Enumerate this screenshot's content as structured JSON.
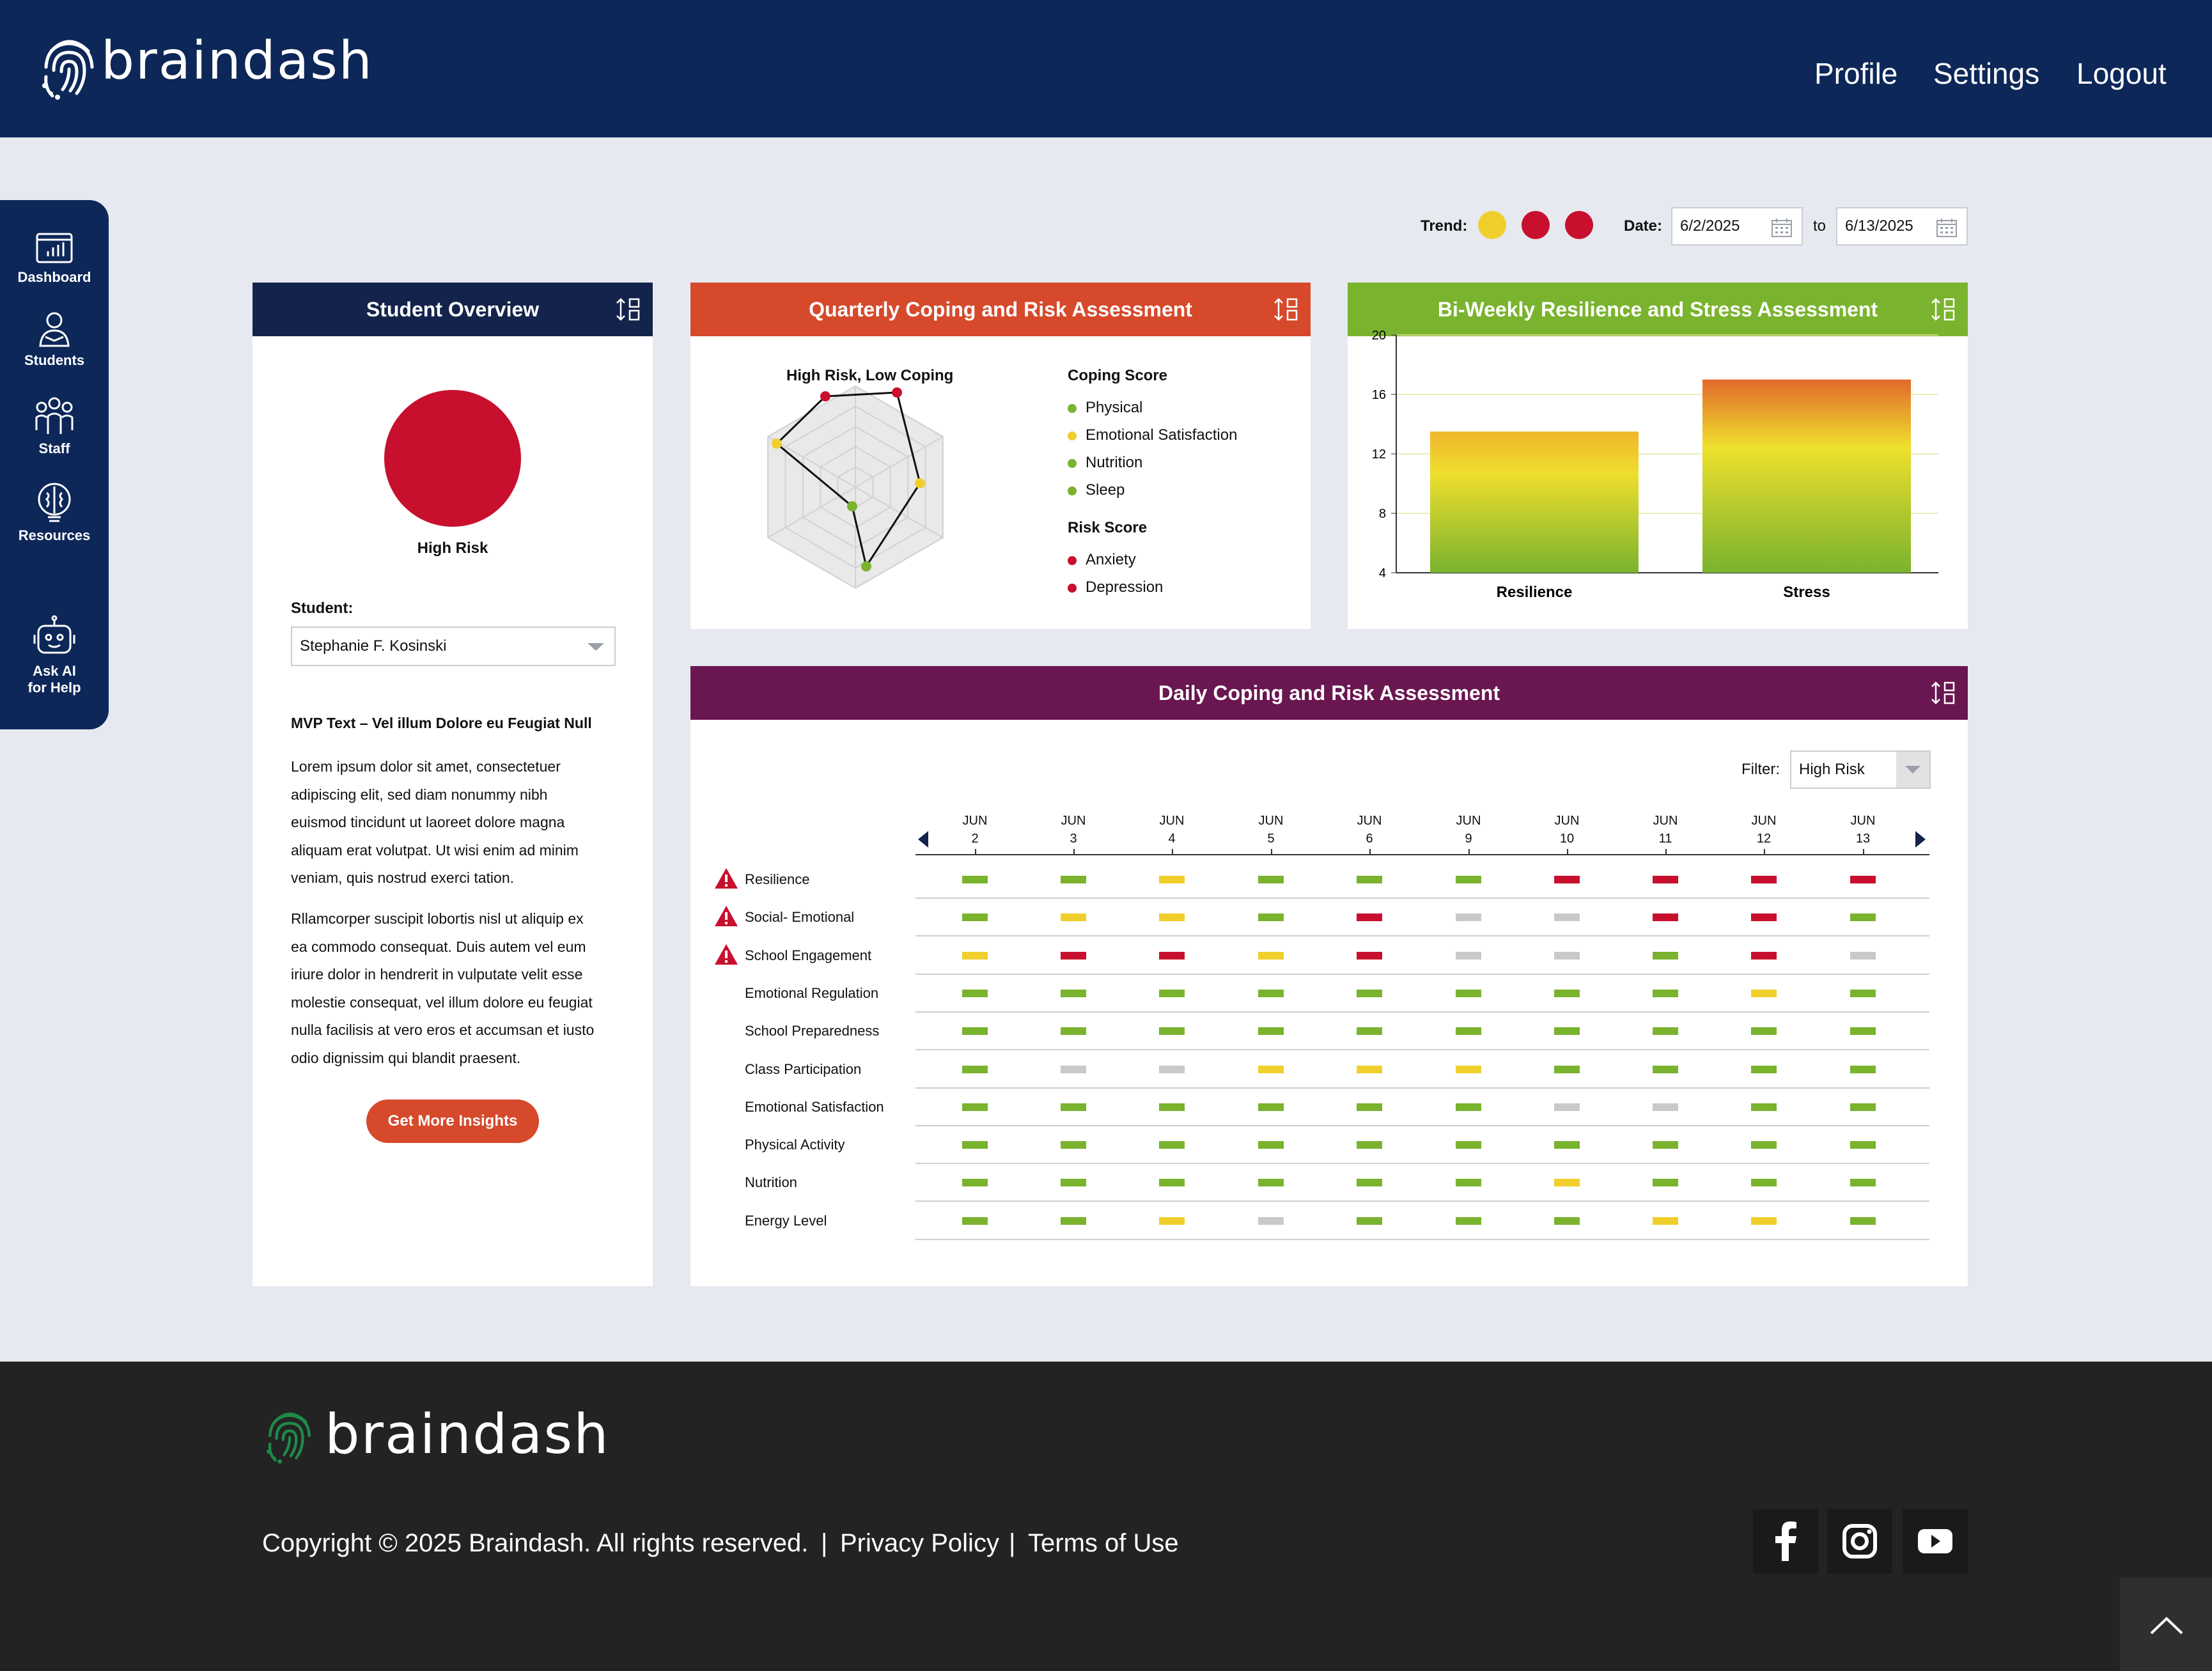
{
  "header": {
    "brand": "braindash",
    "nav": [
      "Profile",
      "Settings",
      "Logout"
    ]
  },
  "sidebar": {
    "items": [
      {
        "label": "Dashboard",
        "icon": "dashboard-icon"
      },
      {
        "label": "Students",
        "icon": "students-icon"
      },
      {
        "label": "Staff",
        "icon": "staff-icon"
      },
      {
        "label": "Resources",
        "icon": "brain-icon"
      },
      {
        "label_line1": "Ask AI",
        "label_line2": "for Help",
        "icon": "robot-icon"
      }
    ]
  },
  "filters": {
    "trend_label": "Trend:",
    "trend_colors": [
      "#f0cf2d",
      "#c8102e",
      "#c8102e"
    ],
    "date_label": "Date:",
    "date_from": "6/2/2025",
    "to_label": "to",
    "date_to": "6/13/2025"
  },
  "overview": {
    "title": "Student Overview",
    "status_color": "#c8102e",
    "status": "High Risk",
    "student_label": "Student:",
    "student": "Stephanie F. Kosinski",
    "text_title": "MVP Text – Vel illum Dolore eu Feugiat Null",
    "para1": [
      "Lorem ipsum dolor sit amet, consectetuer",
      "adipiscing elit, sed diam nonummy nibh",
      "euismod tincidunt ut laoreet dolore magna",
      "aliquam erat volutpat. Ut wisi enim ad minim",
      "veniam, quis nostrud exerci tation."
    ],
    "para2": [
      "Rllamcorper suscipit lobortis nisl ut aliquip ex",
      "ea commodo consequat. Duis autem vel eum",
      "iriure dolor in hendrerit in vulputate velit esse",
      "molestie consequat, vel illum dolore eu feugiat",
      "nulla facilisis at vero eros et accumsan et iusto",
      "odio dignissim qui blandit praesent."
    ],
    "button": "Get More Insights"
  },
  "quarterly": {
    "title": "Quarterly Coping and Risk Assessment",
    "chart_title": "High Risk, Low Coping",
    "coping_heading": "Coping Score",
    "coping": [
      {
        "name": "Physical",
        "color": "#7ab32e"
      },
      {
        "name": "Emotional Satisfaction",
        "color": "#f0cf2d"
      },
      {
        "name": "Nutrition",
        "color": "#7ab32e"
      },
      {
        "name": "Sleep",
        "color": "#7ab32e"
      }
    ],
    "risk_heading": "Risk Score",
    "risk": [
      {
        "name": "Anxiety",
        "color": "#c8102e"
      },
      {
        "name": "Depression",
        "color": "#c8102e"
      }
    ]
  },
  "biweekly": {
    "title": "Bi-Weekly Resilience and Stress Assessment"
  },
  "chart_data": {
    "type": "bar",
    "categories": [
      "Resilience",
      "Stress"
    ],
    "values": [
      13.5,
      17
    ],
    "ylim": [
      4,
      20
    ],
    "yticks": [
      20,
      16,
      12,
      8,
      4
    ],
    "grid": true
  },
  "daily": {
    "title": "Daily Coping and Risk Assessment",
    "filter_label": "Filter:",
    "filter_value": "High Risk",
    "month": "JUN",
    "days": [
      "2",
      "3",
      "4",
      "5",
      "6",
      "9",
      "10",
      "11",
      "12",
      "13"
    ],
    "palette": {
      "g": "#7ab32e",
      "y": "#f0cf2d",
      "r": "#c8102e",
      "x": "#c9c9c9"
    },
    "rows": [
      {
        "label": "Resilience",
        "alert": true,
        "values": [
          "g",
          "g",
          "y",
          "g",
          "g",
          "g",
          "r",
          "r",
          "r",
          "r"
        ]
      },
      {
        "label": "Social- Emotional",
        "alert": true,
        "values": [
          "g",
          "y",
          "y",
          "g",
          "r",
          "x",
          "x",
          "r",
          "r",
          "g"
        ]
      },
      {
        "label": "School Engagement",
        "alert": true,
        "values": [
          "y",
          "r",
          "r",
          "y",
          "r",
          "x",
          "x",
          "g",
          "r",
          "x"
        ]
      },
      {
        "label": "Emotional Regulation",
        "alert": false,
        "values": [
          "g",
          "g",
          "g",
          "g",
          "g",
          "g",
          "g",
          "g",
          "y",
          "g"
        ]
      },
      {
        "label": "School Preparedness",
        "alert": false,
        "values": [
          "g",
          "g",
          "g",
          "g",
          "g",
          "g",
          "g",
          "g",
          "g",
          "g"
        ]
      },
      {
        "label": "Class Participation",
        "alert": false,
        "values": [
          "g",
          "x",
          "x",
          "y",
          "y",
          "y",
          "g",
          "g",
          "g",
          "g"
        ]
      },
      {
        "label": "Emotional Satisfaction",
        "alert": false,
        "values": [
          "g",
          "g",
          "g",
          "g",
          "g",
          "g",
          "x",
          "x",
          "g",
          "g"
        ]
      },
      {
        "label": "Physical Activity",
        "alert": false,
        "values": [
          "g",
          "g",
          "g",
          "g",
          "g",
          "g",
          "g",
          "g",
          "g",
          "g"
        ]
      },
      {
        "label": "Nutrition",
        "alert": false,
        "values": [
          "g",
          "g",
          "g",
          "g",
          "g",
          "g",
          "y",
          "g",
          "g",
          "g"
        ]
      },
      {
        "label": "Energy Level",
        "alert": false,
        "values": [
          "g",
          "g",
          "y",
          "x",
          "g",
          "g",
          "g",
          "y",
          "y",
          "g"
        ]
      }
    ]
  },
  "footer": {
    "brand": "braindash",
    "copyright": "Copyright © 2025 Braindash. All rights reserved.",
    "sep": "|",
    "privacy": "Privacy Policy",
    "terms": "Terms of Use"
  }
}
